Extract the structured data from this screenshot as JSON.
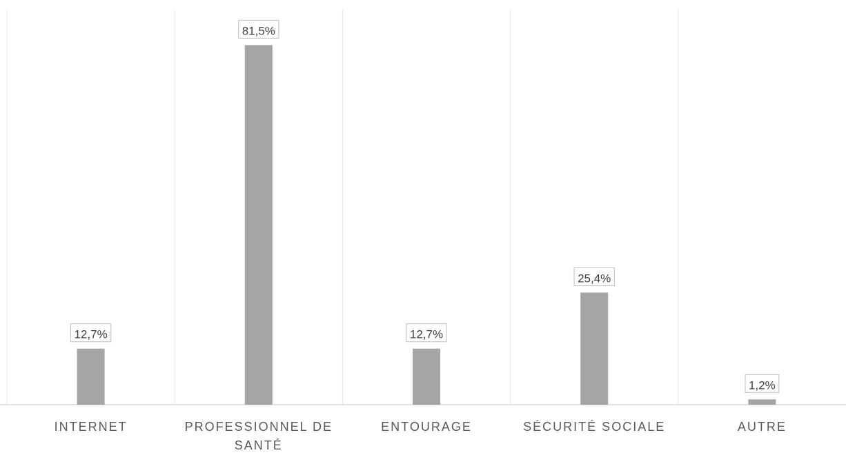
{
  "chart_data": {
    "type": "bar",
    "categories": [
      [
        "INTERNET"
      ],
      [
        "PROFESSIONNEL DE",
        "SANTÉ"
      ],
      [
        "ENTOURAGE"
      ],
      [
        "SÉCURITÉ SOCIALE"
      ],
      [
        "AUTRE"
      ]
    ],
    "values": [
      12.7,
      81.5,
      12.7,
      25.4,
      1.2
    ],
    "data_labels": [
      "12,7%",
      "81,5%",
      "12,7%",
      "25,4%",
      "1,2%"
    ],
    "unit": "%",
    "ylim": [
      0,
      90
    ],
    "grid": "vertical-separators",
    "legend": "none",
    "colors": {
      "bar": "#a5a5a5",
      "axis": "#d9d9d9",
      "separator": "#e6e6e6",
      "label_box_border": "#bfbfbf"
    }
  }
}
